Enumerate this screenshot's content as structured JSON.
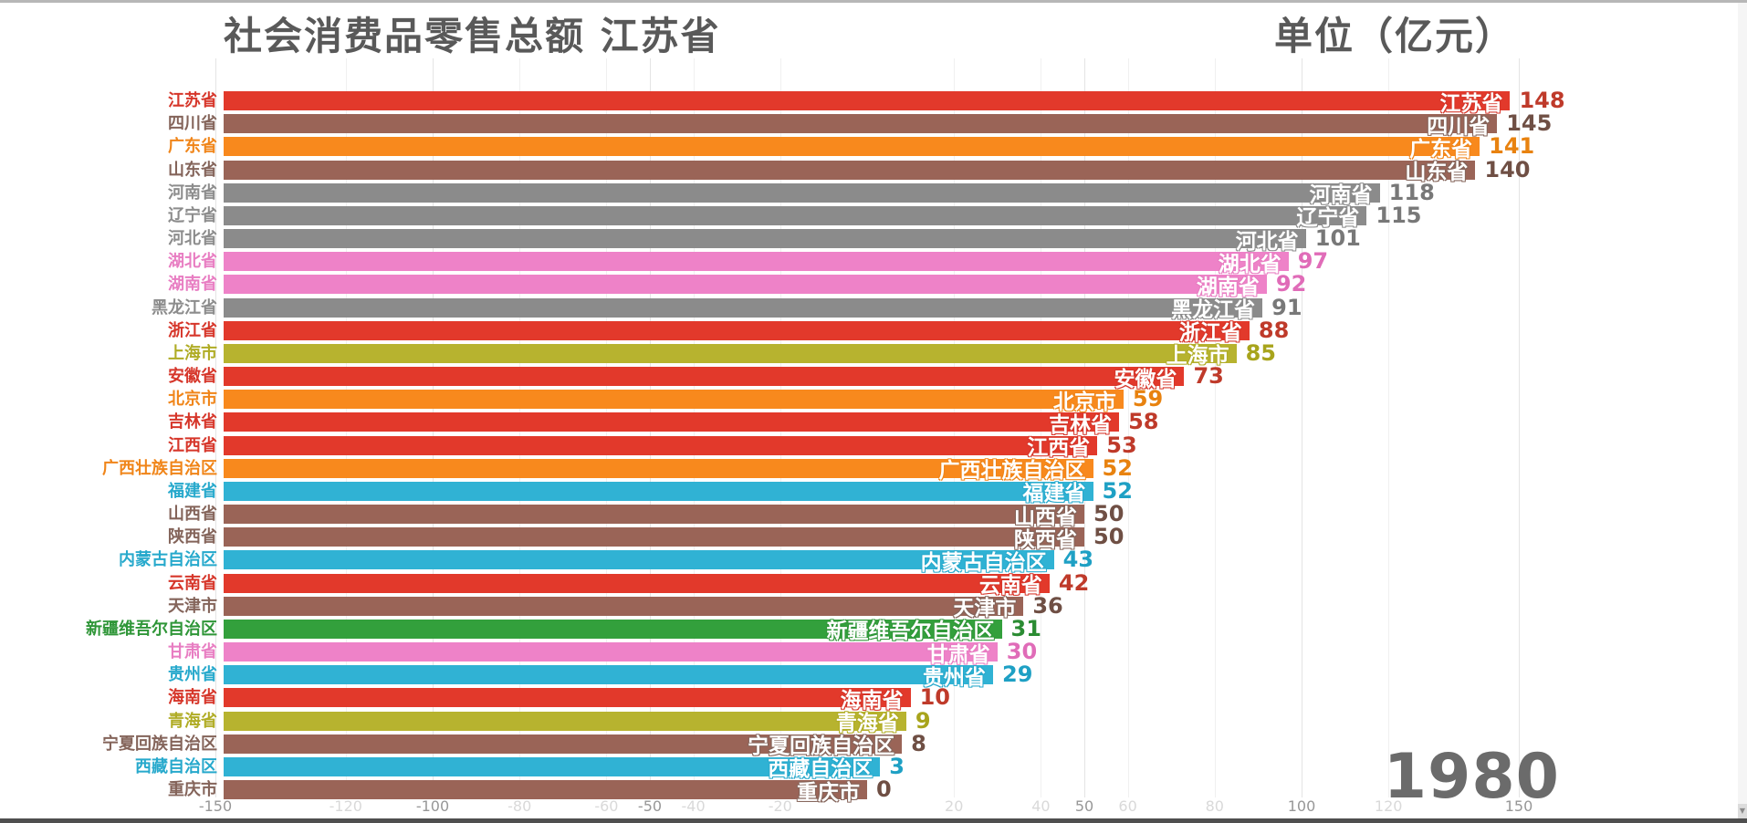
{
  "header": {
    "title": "社会消费品零售总额 江苏省",
    "unit_label": "单位（亿元）"
  },
  "year": "1980",
  "axis": {
    "ticks": [
      {
        "label": "-150",
        "value": -150,
        "major": true
      },
      {
        "label": "-120",
        "value": -120,
        "major": false
      },
      {
        "label": "-100",
        "value": -100,
        "major": true
      },
      {
        "label": "-80",
        "value": -80,
        "major": false
      },
      {
        "label": "-60",
        "value": -60,
        "major": false
      },
      {
        "label": "-50",
        "value": -50,
        "major": true
      },
      {
        "label": "-40",
        "value": -40,
        "major": false
      },
      {
        "label": "-20",
        "value": -20,
        "major": false
      },
      {
        "label": "20",
        "value": 20,
        "major": false
      },
      {
        "label": "40",
        "value": 40,
        "major": false
      },
      {
        "label": "50",
        "value": 50,
        "major": true
      },
      {
        "label": "60",
        "value": 60,
        "major": false
      },
      {
        "label": "80",
        "value": 80,
        "major": false
      },
      {
        "label": "100",
        "value": 100,
        "major": true
      },
      {
        "label": "120",
        "value": 120,
        "major": false
      },
      {
        "label": "150",
        "value": 150,
        "major": true
      }
    ]
  },
  "palette": {
    "red": {
      "bar": "#e2392b",
      "label": "#d6362a",
      "value": "#bf3a2a"
    },
    "orange": {
      "bar": "#f8891d",
      "label": "#f08519",
      "value": "#e8820f"
    },
    "brown": {
      "bar": "#9a6457",
      "label": "#84645a",
      "value": "#6f4f44"
    },
    "gray": {
      "bar": "#8b8b8b",
      "label": "#8c8c8c",
      "value": "#787878"
    },
    "pink": {
      "bar": "#ee82c8",
      "label": "#e87dc2",
      "value": "#e06cb8"
    },
    "olive": {
      "bar": "#b7b32f",
      "label": "#b0ac25",
      "value": "#a8a41c"
    },
    "cyan": {
      "bar": "#30b2d4",
      "label": "#27a9cc",
      "value": "#1ea0c4"
    },
    "green": {
      "bar": "#33a03c",
      "label": "#2f9638",
      "value": "#2b8c33"
    }
  },
  "chart_data": {
    "type": "bar",
    "orientation": "horizontal",
    "title": "社会消费品零售总额 江苏省",
    "unit": "亿元",
    "year": "1980",
    "xlim": [
      -157,
      203
    ],
    "grid": true,
    "categories": [
      "江苏省",
      "四川省",
      "广东省",
      "山东省",
      "河南省",
      "辽宁省",
      "河北省",
      "湖北省",
      "湖南省",
      "黑龙江省",
      "浙江省",
      "上海市",
      "安徽省",
      "北京市",
      "吉林省",
      "江西省",
      "广西壮族自治区",
      "福建省",
      "山西省",
      "陕西省",
      "内蒙古自治区",
      "云南省",
      "天津市",
      "新疆维吾尔自治区",
      "甘肃省",
      "贵州省",
      "海南省",
      "青海省",
      "宁夏回族自治区",
      "西藏自治区",
      "重庆市"
    ],
    "values": [
      148,
      145,
      141,
      140,
      118,
      115,
      101,
      97,
      92,
      91,
      88,
      85,
      73,
      59,
      58,
      53,
      52,
      52,
      50,
      50,
      43,
      42,
      36,
      31,
      30,
      29,
      10,
      9,
      8,
      3,
      0
    ],
    "rows": [
      {
        "name": "江苏省",
        "value": 148,
        "color": "red"
      },
      {
        "name": "四川省",
        "value": 145,
        "color": "brown"
      },
      {
        "name": "广东省",
        "value": 141,
        "color": "orange"
      },
      {
        "name": "山东省",
        "value": 140,
        "color": "brown"
      },
      {
        "name": "河南省",
        "value": 118,
        "color": "gray"
      },
      {
        "name": "辽宁省",
        "value": 115,
        "color": "gray"
      },
      {
        "name": "河北省",
        "value": 101,
        "color": "gray"
      },
      {
        "name": "湖北省",
        "value": 97,
        "color": "pink"
      },
      {
        "name": "湖南省",
        "value": 92,
        "color": "pink"
      },
      {
        "name": "黑龙江省",
        "value": 91,
        "color": "gray"
      },
      {
        "name": "浙江省",
        "value": 88,
        "color": "red"
      },
      {
        "name": "上海市",
        "value": 85,
        "color": "olive"
      },
      {
        "name": "安徽省",
        "value": 73,
        "color": "red"
      },
      {
        "name": "北京市",
        "value": 59,
        "color": "orange"
      },
      {
        "name": "吉林省",
        "value": 58,
        "color": "red"
      },
      {
        "name": "江西省",
        "value": 53,
        "color": "red"
      },
      {
        "name": "广西壮族自治区",
        "value": 52,
        "color": "orange"
      },
      {
        "name": "福建省",
        "value": 52,
        "color": "cyan"
      },
      {
        "name": "山西省",
        "value": 50,
        "color": "brown"
      },
      {
        "name": "陕西省",
        "value": 50,
        "color": "brown"
      },
      {
        "name": "内蒙古自治区",
        "value": 43,
        "color": "cyan"
      },
      {
        "name": "云南省",
        "value": 42,
        "color": "red"
      },
      {
        "name": "天津市",
        "value": 36,
        "color": "brown"
      },
      {
        "name": "新疆维吾尔自治区",
        "value": 31,
        "color": "green"
      },
      {
        "name": "甘肃省",
        "value": 30,
        "color": "pink"
      },
      {
        "name": "贵州省",
        "value": 29,
        "color": "cyan"
      },
      {
        "name": "海南省",
        "value": 10,
        "color": "red"
      },
      {
        "name": "青海省",
        "value": 9,
        "color": "olive"
      },
      {
        "name": "宁夏回族自治区",
        "value": 8,
        "color": "brown"
      },
      {
        "name": "西藏自治区",
        "value": 3,
        "color": "cyan"
      },
      {
        "name": "重庆市",
        "value": 0,
        "color": "brown"
      }
    ]
  },
  "icons": {
    "scroll_down_arrow": "▼"
  }
}
